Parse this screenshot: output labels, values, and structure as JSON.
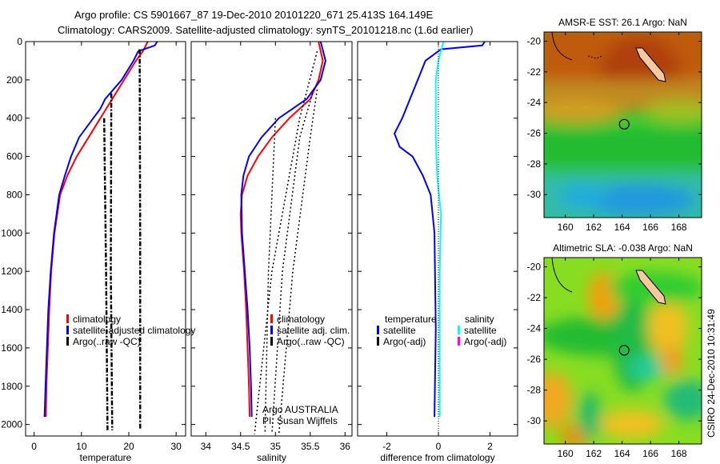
{
  "title": {
    "line1": "Argo profile: CS 5901667_87 19-Dec-2010 20101220_671 25.413S 164.149E",
    "line2": "Climatology: CARS2009. Satellite-adjusted climatology: synTS_20101218.nc (1.6d earlier)"
  },
  "colors": {
    "clim": "#ff0000",
    "sat": "#0000ff",
    "argo": "#000000",
    "sal_sat": "#00ffff",
    "sal_argo": "#ff00ff"
  },
  "chart_data": [
    {
      "type": "line",
      "name": "temperature",
      "xlabel": "temperature",
      "xlim": [
        -1.8,
        32
      ],
      "ylim": [
        0,
        2060
      ],
      "xticks": [
        0,
        10,
        20,
        30
      ],
      "yticks": [
        0,
        200,
        400,
        600,
        800,
        1000,
        1200,
        1400,
        1600,
        1800,
        2000
      ],
      "legend": {
        "placement": "center-left",
        "entries": [
          "climatology",
          "satellite-adjusted climatology",
          "Argo(..raw -QC)"
        ]
      },
      "series": [
        {
          "name": "climatology",
          "color": "#ff0000",
          "x": [
            24,
            23,
            21.5,
            19,
            16.5,
            14,
            11.5,
            9,
            7,
            5.5,
            4.3,
            3.6,
            3.2,
            2.9,
            2.6,
            2.5
          ],
          "depth": [
            0,
            50,
            100,
            200,
            300,
            400,
            500,
            600,
            700,
            800,
            1000,
            1200,
            1400,
            1600,
            1800,
            1960
          ]
        },
        {
          "name": "satellite",
          "color": "#0000ff",
          "x": [
            26,
            25.5,
            22,
            21,
            18.5,
            15,
            14,
            12.5,
            9.5,
            7.8,
            6.5,
            5.3,
            4.2,
            3.5,
            3.0,
            2.7,
            2.4,
            2.2
          ],
          "depth": [
            0,
            20,
            50,
            100,
            200,
            300,
            350,
            400,
            500,
            600,
            700,
            800,
            1000,
            1200,
            1400,
            1600,
            1800,
            1960
          ]
        },
        {
          "name": "argo-1",
          "color": "#000000",
          "style": "dashdot",
          "x": [
            14.8,
            15.2,
            15.5
          ],
          "depth": [
            400,
            1200,
            2030
          ]
        },
        {
          "name": "argo-2",
          "color": "#000000",
          "style": "dashdot",
          "x": [
            16.3,
            16.2,
            16.5
          ],
          "depth": [
            270,
            1200,
            2030
          ]
        },
        {
          "name": "argo-3",
          "color": "#000000",
          "style": "dashdot",
          "x": [
            22.3,
            22.4,
            22.4
          ],
          "depth": [
            40,
            1000,
            2030
          ]
        }
      ]
    },
    {
      "type": "line",
      "name": "salinity",
      "xlabel": "salinity",
      "xlim": [
        33.79,
        36.1
      ],
      "ylim": [
        0,
        2060
      ],
      "xticks": [
        34,
        34.5,
        35,
        35.5,
        36
      ],
      "legend": {
        "placement": "center-right",
        "entries": [
          "climatology",
          "satellite adj. clim.",
          "Argo(..raw -QC)"
        ]
      },
      "annotation": [
        "Argo AUSTRALIA",
        "PI: Susan Wijffels"
      ],
      "series": [
        {
          "name": "climatology",
          "color": "#ff0000",
          "x": [
            35.62,
            35.68,
            35.62,
            35.5,
            35.2,
            34.95,
            34.75,
            34.6,
            34.52,
            34.5,
            34.51,
            34.55,
            34.58,
            34.6,
            34.62,
            34.63
          ],
          "depth": [
            0,
            100,
            200,
            300,
            400,
            500,
            600,
            700,
            800,
            900,
            1000,
            1200,
            1400,
            1600,
            1800,
            1960
          ]
        },
        {
          "name": "satellite",
          "color": "#0000ff",
          "x": [
            35.65,
            35.72,
            35.65,
            35.45,
            35.05,
            34.8,
            34.62,
            34.54,
            34.51,
            34.52,
            34.56,
            34.6,
            34.63,
            34.65,
            34.66
          ],
          "depth": [
            0,
            100,
            200,
            300,
            400,
            500,
            600,
            700,
            800,
            1000,
            1200,
            1400,
            1600,
            1800,
            1960
          ]
        },
        {
          "name": "argo-1",
          "color": "#000000",
          "style": "dotted",
          "x": [
            35.6,
            35.35,
            34.95,
            34.7
          ],
          "depth": [
            50,
            400,
            1200,
            2050
          ]
        },
        {
          "name": "argo-2",
          "color": "#000000",
          "style": "dotted",
          "x": [
            35.55,
            35.35,
            35.1,
            34.95
          ],
          "depth": [
            250,
            500,
            1200,
            2050
          ]
        },
        {
          "name": "argo-3",
          "color": "#000000",
          "style": "dotted",
          "x": [
            35.6,
            35.5,
            35.25,
            35.05
          ],
          "depth": [
            250,
            500,
            1200,
            2050
          ]
        },
        {
          "name": "argo-4",
          "color": "#000000",
          "style": "dotted",
          "x": [
            35.0,
            34.9,
            34.85
          ],
          "depth": [
            400,
            1200,
            2050
          ]
        }
      ]
    },
    {
      "type": "line",
      "name": "difference",
      "xlabel": "difference from climatology",
      "xlim": [
        -3.13,
        3.07
      ],
      "ylim": [
        0,
        2060
      ],
      "xticks": [
        -2,
        0,
        2
      ],
      "legend": {
        "placement": "center",
        "headers": [
          "temperature",
          "salinity"
        ],
        "entries": [
          "satellite",
          "Argo(-adj)",
          "satellite",
          "Argo(-adj)"
        ]
      },
      "series": [
        {
          "name": "temperature satellite",
          "color": "#0000ff",
          "x": [
            1.8,
            1.7,
            0.1,
            -0.5,
            -0.8,
            -1.1,
            -1.4,
            -1.7,
            -1.5,
            -1.0,
            -0.6,
            -0.3,
            -0.15,
            -0.1,
            -0.15
          ],
          "depth": [
            0,
            20,
            40,
            100,
            200,
            300,
            400,
            480,
            550,
            600,
            700,
            800,
            1000,
            1500,
            1960
          ]
        },
        {
          "name": "salinity satellite",
          "color": "#00ffff",
          "x": [
            0.2,
            0.1,
            0,
            -0.1,
            -0.1,
            -0.1,
            -0.05,
            0.1,
            0.05,
            0.05,
            0.05
          ],
          "depth": [
            0,
            50,
            100,
            200,
            300,
            500,
            700,
            900,
            1200,
            1600,
            1960
          ]
        },
        {
          "name": "zero",
          "color": "#000000",
          "style": "dotted",
          "x": [
            0,
            0
          ],
          "depth": [
            0,
            2060
          ]
        }
      ]
    },
    {
      "type": "heatmap",
      "name": "sst-map",
      "title": "AMSR-E SST: 26.1 Argo: NaN",
      "xlim": [
        158.5,
        169.6
      ],
      "ylim": [
        -31.5,
        -19.4
      ],
      "xticks": [
        160,
        162,
        164,
        166,
        168
      ],
      "yticks": [
        -20,
        -22,
        -24,
        -26,
        -28,
        -30
      ],
      "marker": {
        "lon": 164.149,
        "lat": -25.413
      }
    },
    {
      "type": "heatmap",
      "name": "sla-map",
      "title": "Altimetric SLA: -0.038 Argo: NaN",
      "xlim": [
        158.5,
        169.6
      ],
      "ylim": [
        -31.5,
        -19.4
      ],
      "xticks": [
        160,
        162,
        164,
        166,
        168
      ],
      "yticks": [
        -20,
        -22,
        -24,
        -26,
        -28,
        -30
      ],
      "marker": {
        "lon": 164.149,
        "lat": -25.413
      }
    }
  ],
  "footer": "CSIRO 24-Dec-2010 10:31:49"
}
